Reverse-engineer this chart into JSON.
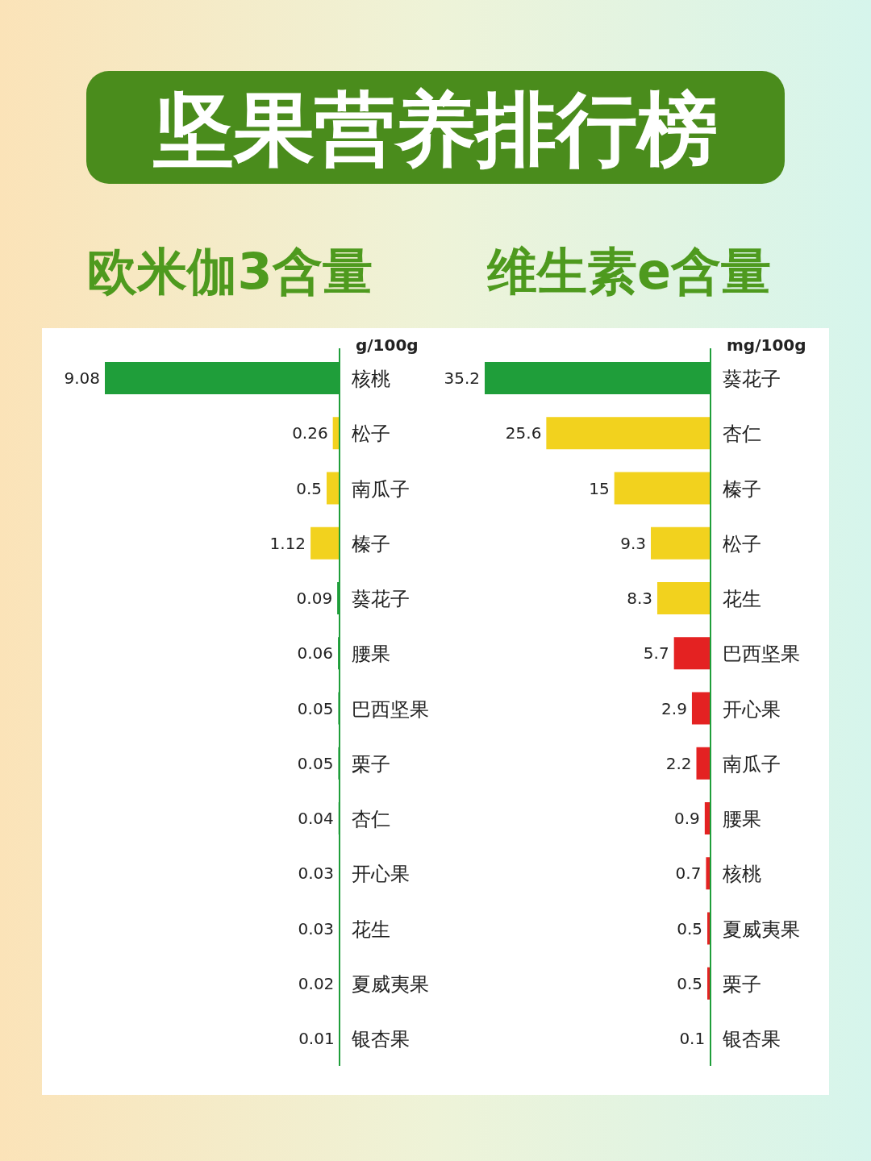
{
  "chart_data": [
    {
      "type": "bar",
      "orientation": "horizontal",
      "title": "坚果营养排行榜",
      "subtitle": "欧米伽3含量",
      "xlabel": "g/100g",
      "data_labels": true,
      "categories": [
        "核桃",
        "松子",
        "南瓜子",
        "榛子",
        "葵花子",
        "腰果",
        "巴西坚果",
        "栗子",
        "杏仁",
        "开心果",
        "花生",
        "夏威夷果",
        "银杏果"
      ],
      "values": [
        9.08,
        0.26,
        0.5,
        1.12,
        0.09,
        0.06,
        0.05,
        0.05,
        0.04,
        0.03,
        0.03,
        0.02,
        0.01
      ],
      "colors": [
        "#1f9e3a",
        "#f2d21e",
        "#f2d21e",
        "#f2d21e",
        "#1f9e3a",
        "#1f9e3a",
        "#1f9e3a",
        "#1f9e3a",
        "#1f9e3a",
        "#1f9e3a",
        "#1f9e3a",
        "#1f9e3a",
        "#1f9e3a"
      ]
    },
    {
      "type": "bar",
      "orientation": "horizontal",
      "subtitle": "维生素e含量",
      "xlabel": "mg/100g",
      "data_labels": true,
      "categories": [
        "葵花子",
        "杏仁",
        "榛子",
        "松子",
        "花生",
        "巴西坚果",
        "开心果",
        "南瓜子",
        "腰果",
        "核桃",
        "夏威夷果",
        "栗子",
        "银杏果"
      ],
      "values": [
        35.2,
        25.6,
        15,
        9.3,
        8.3,
        5.7,
        2.9,
        2.2,
        0.9,
        0.7,
        0.5,
        0.5,
        0.1
      ],
      "colors": [
        "#1f9e3a",
        "#f2d21e",
        "#f2d21e",
        "#f2d21e",
        "#f2d21e",
        "#e42222",
        "#e42222",
        "#e42222",
        "#e42222",
        "#e42222",
        "#e42222",
        "#e42222",
        "#e42222"
      ]
    }
  ]
}
